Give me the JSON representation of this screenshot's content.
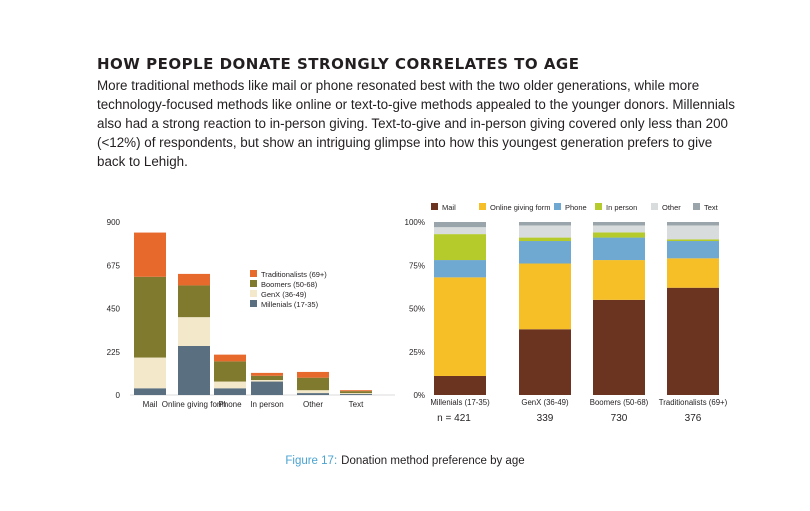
{
  "heading": "HOW PEOPLE DONATE STRONGLY CORRELATES TO AGE",
  "intro": "More traditional methods like mail or phone resonated best with the two older generations, while more technology-focused methods like online or text-to-give methods appealed to the younger donors. Millennials also had a strong reaction to in-person giving. Text-to-give and in-person giving covered only less than 200 (<12%) of respondents, but show an intriguing glimpse into how this youngest generation prefers to give back to Lehigh.",
  "caption": {
    "figure": "Figure 17:",
    "text": "Donation method preference by age"
  },
  "colors": {
    "traditionalists": "#e8692c",
    "boomers": "#7f7a2e",
    "genx": "#f3e8c9",
    "millenials": "#5a6f80",
    "mail": "#6b3420",
    "online": "#f7bf27",
    "phone": "#6fa8d0",
    "inperson": "#b5cb2c",
    "other": "#d9dcdc",
    "text": "#9aa5ab"
  },
  "chart_data": [
    {
      "type": "bar",
      "stacked": true,
      "categories": [
        "Mail",
        "Online giving form",
        "Phone",
        "In person",
        "Other",
        "Text"
      ],
      "series": [
        {
          "name": "Millenials (17-35)",
          "values": [
            35,
            255,
            35,
            70,
            10,
            5
          ]
        },
        {
          "name": "GenX (36-49)",
          "values": [
            160,
            150,
            35,
            8,
            15,
            5
          ]
        },
        {
          "name": "Boomers (50-68)",
          "values": [
            420,
            165,
            105,
            22,
            65,
            10
          ]
        },
        {
          "name": "Traditionalists (69+)",
          "values": [
            230,
            60,
            35,
            15,
            30,
            5
          ]
        }
      ],
      "stack_order": [
        "Millenials (17-35)",
        "GenX (36-49)",
        "Boomers (50-68)",
        "Traditionalists (69+)"
      ],
      "legend_order": [
        "Traditionalists (69+)",
        "Boomers (50-68)",
        "GenX (36-49)",
        "Millenials (17-35)"
      ],
      "series_colors": [
        "#5a6f80",
        "#f3e8c9",
        "#7f7a2e",
        "#e8692c"
      ],
      "ylim": [
        0,
        900
      ],
      "yticks": [
        0,
        225,
        450,
        675,
        900
      ],
      "ytick_labels": [
        "0",
        "225",
        "450",
        "675",
        "900"
      ],
      "legend": "right"
    },
    {
      "type": "bar",
      "stacked": true,
      "percent": true,
      "categories": [
        "Millenials (17-35)",
        "GenX (36-49)",
        "Boomers (50-68)",
        "Traditionalists (69+)"
      ],
      "counts": [
        "n = 421",
        "339",
        "730",
        "376"
      ],
      "series": [
        {
          "name": "Mail",
          "values": [
            11,
            38,
            55,
            62
          ]
        },
        {
          "name": "Online giving form",
          "values": [
            57,
            38,
            23,
            17
          ]
        },
        {
          "name": "Phone",
          "values": [
            10,
            13,
            13,
            10
          ]
        },
        {
          "name": "In person",
          "values": [
            15,
            2,
            3,
            1
          ]
        },
        {
          "name": "Other",
          "values": [
            4,
            7,
            4,
            8
          ]
        },
        {
          "name": "Text",
          "values": [
            3,
            2,
            2,
            2
          ]
        }
      ],
      "series_colors": [
        "#6b3420",
        "#f7bf27",
        "#6fa8d0",
        "#b5cb2c",
        "#d9dcdc",
        "#9aa5ab"
      ],
      "ylim": [
        0,
        100
      ],
      "yticks": [
        0,
        25,
        50,
        75,
        100
      ],
      "ytick_labels": [
        "0%",
        "25%",
        "50%",
        "75%",
        "100%"
      ],
      "legend": "top"
    }
  ]
}
